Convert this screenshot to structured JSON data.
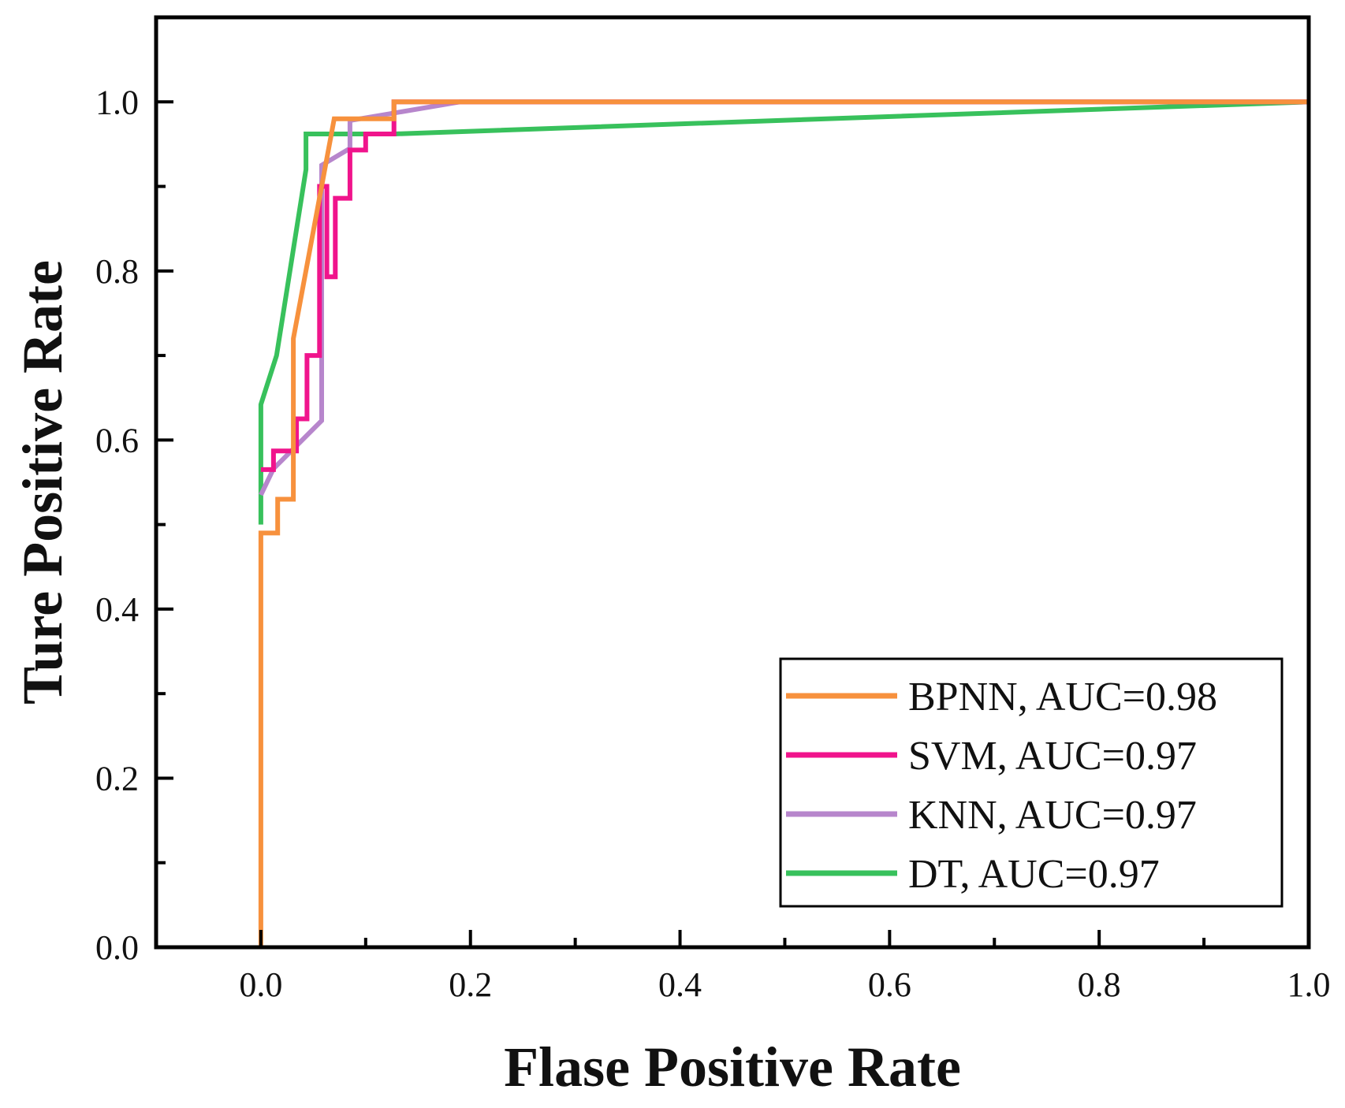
{
  "chart_data": {
    "type": "line",
    "title": "",
    "xlabel": "Flase Positive Rate",
    "ylabel": "Ture Positive Rate",
    "xlim": [
      -0.1,
      1.0
    ],
    "ylim": [
      0.0,
      1.1
    ],
    "xticks": [
      0.0,
      0.2,
      0.4,
      0.6,
      0.8,
      1.0
    ],
    "xtick_labels": [
      "0.0",
      "0.2",
      "0.4",
      "0.6",
      "0.8",
      "1.0"
    ],
    "yticks": [
      0.0,
      0.2,
      0.4,
      0.6,
      0.8,
      1.0
    ],
    "ytick_labels": [
      "0.0",
      "0.2",
      "0.4",
      "0.6",
      "0.8",
      "1.0"
    ],
    "grid": false,
    "legend_position": "bottom-right",
    "series": [
      {
        "name": "BPNN, AUC=0.98",
        "color": "#f7913d",
        "points": [
          [
            0.0,
            0.0
          ],
          [
            0.0,
            0.49
          ],
          [
            0.016,
            0.49
          ],
          [
            0.016,
            0.53
          ],
          [
            0.031,
            0.53
          ],
          [
            0.031,
            0.72
          ],
          [
            0.07,
            0.98
          ],
          [
            0.127,
            0.98
          ],
          [
            0.127,
            1.0
          ],
          [
            1.0,
            1.0
          ]
        ]
      },
      {
        "name": "SVM, AUC=0.97",
        "color": "#f0148c",
        "points": [
          [
            0.0,
            0.565
          ],
          [
            0.012,
            0.565
          ],
          [
            0.012,
            0.587
          ],
          [
            0.034,
            0.587
          ],
          [
            0.034,
            0.625
          ],
          [
            0.044,
            0.625
          ],
          [
            0.044,
            0.7
          ],
          [
            0.056,
            0.7
          ],
          [
            0.056,
            0.9
          ],
          [
            0.063,
            0.9
          ],
          [
            0.063,
            0.793
          ],
          [
            0.071,
            0.793
          ],
          [
            0.071,
            0.886
          ],
          [
            0.085,
            0.886
          ],
          [
            0.085,
            0.943
          ],
          [
            0.1,
            0.943
          ],
          [
            0.1,
            0.962
          ],
          [
            0.127,
            0.962
          ],
          [
            0.127,
            1.0
          ],
          [
            1.0,
            1.0
          ]
        ]
      },
      {
        "name": "KNN, AUC=0.97",
        "color": "#b786cc",
        "points": [
          [
            0.0,
            0.535
          ],
          [
            0.012,
            0.566
          ],
          [
            0.058,
            0.623
          ],
          [
            0.058,
            0.925
          ],
          [
            0.085,
            0.945
          ],
          [
            0.085,
            0.978
          ],
          [
            0.19,
            1.0
          ],
          [
            1.0,
            1.0
          ]
        ]
      },
      {
        "name": "DT, AUC=0.97",
        "color": "#38c15c",
        "points": [
          [
            0.0,
            0.5
          ],
          [
            0.0,
            0.642
          ],
          [
            0.015,
            0.7
          ],
          [
            0.043,
            0.92
          ],
          [
            0.043,
            0.962
          ],
          [
            0.127,
            0.962
          ],
          [
            1.0,
            1.0
          ]
        ]
      }
    ]
  }
}
